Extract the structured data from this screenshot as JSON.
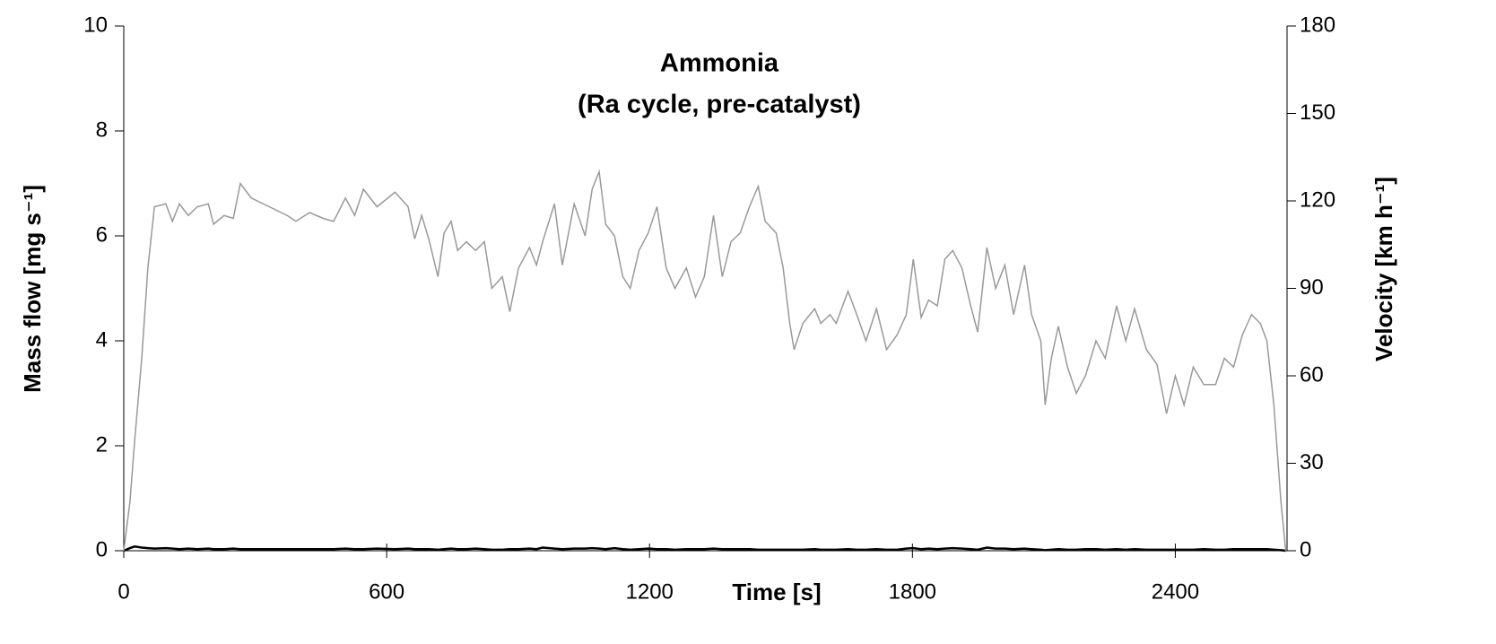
{
  "chart_data": {
    "type": "line",
    "title": [
      "Ammonia",
      "(Ra cycle, pre-catalyst)"
    ],
    "xlabel": "Time [s]",
    "ylabel": "Mass flow [mg s⁻¹]",
    "y2label": "Velocity [km h⁻¹]",
    "xlim": [
      0,
      2655
    ],
    "xticks": [
      0,
      600,
      1200,
      1800,
      2400
    ],
    "ylim": [
      0,
      10
    ],
    "yticks": [
      0,
      2,
      4,
      6,
      8,
      10
    ],
    "y2lim": [
      0,
      180
    ],
    "y2ticks": [
      0,
      30,
      60,
      90,
      120,
      150,
      180
    ],
    "x": [
      0,
      14,
      25,
      41,
      55,
      70,
      96,
      111,
      127,
      147,
      168,
      193,
      205,
      229,
      250,
      266,
      291,
      332,
      373,
      393,
      424,
      455,
      479,
      506,
      527,
      547,
      578,
      619,
      649,
      664,
      680,
      696,
      717,
      731,
      747,
      762,
      782,
      803,
      823,
      840,
      864,
      881,
      901,
      926,
      942,
      956,
      983,
      1001,
      1028,
      1053,
      1069,
      1085,
      1100,
      1120,
      1139,
      1156,
      1176,
      1197,
      1217,
      1238,
      1258,
      1284,
      1305,
      1325,
      1346,
      1366,
      1386,
      1407,
      1428,
      1448,
      1464,
      1489,
      1505,
      1520,
      1530,
      1550,
      1577,
      1591,
      1612,
      1626,
      1653,
      1673,
      1694,
      1718,
      1741,
      1765,
      1786,
      1802,
      1820,
      1837,
      1857,
      1874,
      1892,
      1913,
      1933,
      1949,
      1970,
      1990,
      2011,
      2031,
      2056,
      2072,
      2093,
      2103,
      2117,
      2133,
      2154,
      2174,
      2195,
      2219,
      2240,
      2266,
      2287,
      2307,
      2334,
      2358,
      2380,
      2400,
      2420,
      2441,
      2465,
      2492,
      2512,
      2533,
      2553,
      2574,
      2594,
      2609,
      2625,
      2641,
      2652
    ],
    "series": [
      {
        "name": "Mass flow",
        "color": "#000000",
        "axis": "y",
        "values": [
          0,
          0.05,
          0.08,
          0.06,
          0.05,
          0.04,
          0.05,
          0.04,
          0.03,
          0.04,
          0.03,
          0.04,
          0.03,
          0.03,
          0.04,
          0.03,
          0.03,
          0.03,
          0.03,
          0.03,
          0.03,
          0.03,
          0.03,
          0.04,
          0.03,
          0.03,
          0.04,
          0.03,
          0.04,
          0.03,
          0.03,
          0.03,
          0.02,
          0.03,
          0.04,
          0.03,
          0.03,
          0.04,
          0.03,
          0.02,
          0.02,
          0.03,
          0.03,
          0.04,
          0.03,
          0.06,
          0.04,
          0.03,
          0.04,
          0.04,
          0.05,
          0.04,
          0.03,
          0.05,
          0.03,
          0.02,
          0.03,
          0.04,
          0.03,
          0.03,
          0.02,
          0.03,
          0.03,
          0.03,
          0.04,
          0.03,
          0.03,
          0.03,
          0.03,
          0.02,
          0.02,
          0.02,
          0.02,
          0.02,
          0.02,
          0.02,
          0.03,
          0.02,
          0.02,
          0.02,
          0.03,
          0.02,
          0.02,
          0.03,
          0.02,
          0.02,
          0.04,
          0.05,
          0.03,
          0.04,
          0.03,
          0.04,
          0.05,
          0.04,
          0.03,
          0.02,
          0.06,
          0.04,
          0.04,
          0.03,
          0.04,
          0.03,
          0.02,
          0.01,
          0.02,
          0.03,
          0.02,
          0.02,
          0.03,
          0.03,
          0.02,
          0.03,
          0.02,
          0.03,
          0.02,
          0.02,
          0.02,
          0.02,
          0.02,
          0.02,
          0.03,
          0.02,
          0.02,
          0.03,
          0.03,
          0.03,
          0.03,
          0.03,
          0.02,
          0.01,
          0
        ]
      },
      {
        "name": "Velocity",
        "color": "#999999",
        "axis": "y2",
        "values": [
          0,
          16.6,
          38,
          66,
          97,
          118,
          119,
          113,
          119,
          115,
          118,
          119,
          112,
          115,
          114,
          126,
          121,
          118,
          115,
          113,
          116,
          114,
          113,
          121,
          115,
          124,
          118,
          123,
          118,
          107,
          115,
          107,
          94,
          109,
          113,
          103,
          106,
          103,
          106,
          90,
          94,
          82,
          97,
          104,
          98,
          106,
          119,
          98,
          119,
          108,
          124,
          130,
          112,
          108,
          94,
          90,
          103,
          109,
          118,
          97,
          90,
          97,
          87,
          94,
          115,
          94,
          106,
          109,
          118,
          125,
          113,
          109,
          97,
          78,
          69,
          78,
          83,
          78,
          81,
          78,
          89,
          81,
          72,
          83,
          69,
          74,
          81,
          100,
          80,
          86,
          84,
          100,
          103,
          97,
          84,
          75,
          104,
          90,
          98,
          81,
          98,
          81,
          72,
          50,
          66,
          77,
          63,
          54,
          60,
          72,
          66,
          84,
          72,
          83,
          69,
          64,
          47,
          60,
          50,
          63,
          57,
          57,
          66,
          63,
          74,
          81,
          78,
          72,
          50,
          17,
          0
        ]
      }
    ]
  }
}
